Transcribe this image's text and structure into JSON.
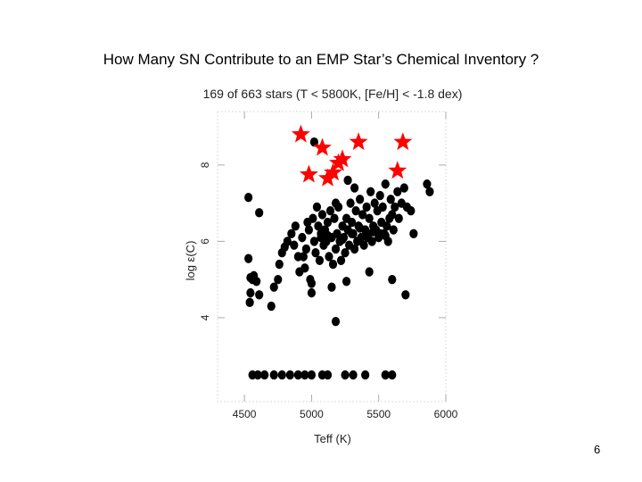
{
  "slide": {
    "title": "How Many SN Contribute to an EMP Star’s Chemical Inventory ?",
    "page_number": "6"
  },
  "chart_data": {
    "type": "scatter",
    "title": "169 of 663 stars (T < 5800K, [Fe/H] < -1.8 dex)",
    "xlabel": "Teff (K)",
    "ylabel": "log ε(C)",
    "xlim": [
      4300,
      6000
    ],
    "ylim": [
      1.8,
      9.4
    ],
    "xticks": [
      4500,
      5000,
      5500,
      6000
    ],
    "yticks": [
      4,
      6,
      8
    ],
    "grid": false,
    "marker_colors": {
      "stars": "#ff0000",
      "dots": "#000000"
    },
    "series": [
      {
        "name": "",
        "marker": "circle",
        "color": "#000000",
        "points": [
          [
            4530,
            7.15
          ],
          [
            4610,
            6.75
          ],
          [
            4530,
            5.55
          ],
          [
            4570,
            5.1
          ],
          [
            4545,
            4.65
          ],
          [
            4560,
            5.0
          ],
          [
            4590,
            4.95
          ],
          [
            4545,
            5.05
          ],
          [
            4540,
            4.4
          ],
          [
            4610,
            4.6
          ],
          [
            4700,
            4.3
          ],
          [
            4720,
            4.8
          ],
          [
            4750,
            5.0
          ],
          [
            4760,
            5.4
          ],
          [
            4780,
            5.7
          ],
          [
            4800,
            5.85
          ],
          [
            4820,
            6.0
          ],
          [
            4850,
            6.2
          ],
          [
            4870,
            5.9
          ],
          [
            4880,
            6.4
          ],
          [
            4900,
            5.6
          ],
          [
            4910,
            5.2
          ],
          [
            4930,
            6.1
          ],
          [
            4950,
            5.3
          ],
          [
            4960,
            5.8
          ],
          [
            4970,
            6.5
          ],
          [
            4980,
            6.3
          ],
          [
            4990,
            5.0
          ],
          [
            5000,
            4.9
          ],
          [
            5010,
            6.6
          ],
          [
            5020,
            6.0
          ],
          [
            5030,
            5.7
          ],
          [
            5040,
            6.9
          ],
          [
            5050,
            6.4
          ],
          [
            5060,
            5.5
          ],
          [
            5070,
            6.2
          ],
          [
            5080,
            6.7
          ],
          [
            5090,
            5.9
          ],
          [
            5100,
            6.3
          ],
          [
            5110,
            6.0
          ],
          [
            5120,
            6.5
          ],
          [
            5130,
            5.6
          ],
          [
            5140,
            6.8
          ],
          [
            5150,
            6.1
          ],
          [
            5160,
            5.4
          ],
          [
            5170,
            6.6
          ],
          [
            5180,
            5.8
          ],
          [
            5190,
            6.2
          ],
          [
            5200,
            6.9
          ],
          [
            5210,
            6.0
          ],
          [
            5220,
            5.5
          ],
          [
            5230,
            6.4
          ],
          [
            5240,
            6.1
          ],
          [
            5250,
            5.7
          ],
          [
            5260,
            6.6
          ],
          [
            5270,
            6.3
          ],
          [
            5280,
            5.9
          ],
          [
            5290,
            7.0
          ],
          [
            5300,
            6.5
          ],
          [
            5310,
            6.2
          ],
          [
            5320,
            5.8
          ],
          [
            5330,
            6.8
          ],
          [
            5340,
            6.0
          ],
          [
            5350,
            6.4
          ],
          [
            5360,
            7.1
          ],
          [
            5370,
            6.1
          ],
          [
            5380,
            6.7
          ],
          [
            5390,
            5.9
          ],
          [
            5400,
            6.3
          ],
          [
            5410,
            6.9
          ],
          [
            5420,
            6.2
          ],
          [
            5430,
            6.6
          ],
          [
            5440,
            7.3
          ],
          [
            5450,
            6.0
          ],
          [
            5460,
            6.4
          ],
          [
            5470,
            7.0
          ],
          [
            5480,
            6.3
          ],
          [
            5490,
            6.8
          ],
          [
            5500,
            6.1
          ],
          [
            5510,
            7.2
          ],
          [
            5520,
            6.5
          ],
          [
            5530,
            6.9
          ],
          [
            5540,
            6.2
          ],
          [
            5550,
            7.5
          ],
          [
            5560,
            6.4
          ],
          [
            5570,
            6.0
          ],
          [
            5580,
            6.6
          ],
          [
            5590,
            7.1
          ],
          [
            5600,
            6.7
          ],
          [
            5610,
            6.3
          ],
          [
            5620,
            6.9
          ],
          [
            5640,
            7.3
          ],
          [
            5650,
            6.6
          ],
          [
            5670,
            7.0
          ],
          [
            5690,
            7.4
          ],
          [
            5710,
            6.9
          ],
          [
            5740,
            6.8
          ],
          [
            5860,
            7.5
          ],
          [
            5880,
            7.3
          ],
          [
            5020,
            8.6
          ],
          [
            5180,
            7.0
          ],
          [
            5320,
            7.4
          ],
          [
            5270,
            7.6
          ],
          [
            5070,
            6.1
          ],
          [
            5120,
            6.15
          ],
          [
            5230,
            6.05
          ],
          [
            5300,
            6.2
          ],
          [
            5360,
            6.35
          ],
          [
            5420,
            6.1
          ],
          [
            5460,
            6.25
          ],
          [
            5510,
            6.2
          ],
          [
            5550,
            6.15
          ],
          [
            5180,
            3.9
          ],
          [
            5700,
            4.6
          ],
          [
            5000,
            4.65
          ],
          [
            4940,
            5.6
          ],
          [
            5150,
            4.8
          ],
          [
            5260,
            4.95
          ],
          [
            5430,
            5.2
          ],
          [
            5600,
            5.0
          ],
          [
            5760,
            6.2
          ],
          [
            4560,
            2.5
          ],
          [
            4600,
            2.5
          ],
          [
            4650,
            2.5
          ],
          [
            4720,
            2.5
          ],
          [
            4780,
            2.5
          ],
          [
            4840,
            2.5
          ],
          [
            4900,
            2.5
          ],
          [
            4950,
            2.5
          ],
          [
            5000,
            2.5
          ],
          [
            5080,
            2.5
          ],
          [
            5120,
            2.5
          ],
          [
            5250,
            2.5
          ],
          [
            5310,
            2.5
          ],
          [
            5400,
            2.5
          ],
          [
            5550,
            2.5
          ],
          [
            5600,
            2.5
          ]
        ]
      },
      {
        "name": "",
        "marker": "star",
        "color": "#ff0000",
        "points": [
          [
            4920,
            8.8
          ],
          [
            5080,
            8.45
          ],
          [
            5350,
            8.6
          ],
          [
            5680,
            8.6
          ],
          [
            5200,
            8.05
          ],
          [
            5230,
            8.15
          ],
          [
            4980,
            7.75
          ],
          [
            5120,
            7.65
          ],
          [
            5160,
            7.8
          ],
          [
            5640,
            7.85
          ]
        ]
      }
    ]
  }
}
